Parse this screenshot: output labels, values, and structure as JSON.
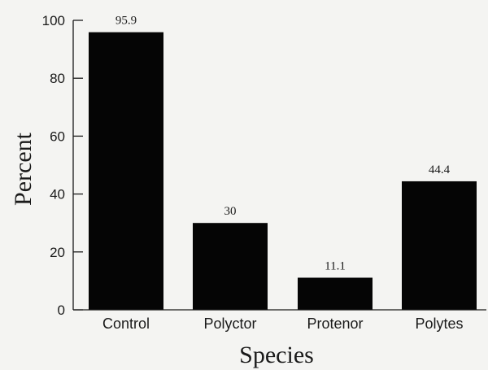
{
  "chart_data": {
    "type": "bar",
    "categories": [
      "Control",
      "Polyctor",
      "Protenor",
      "Polytes"
    ],
    "values": [
      95.9,
      30,
      11.1,
      44.4
    ],
    "data_labels": [
      "95.9",
      "30",
      "11.1",
      "44.4"
    ],
    "title": "",
    "xlabel": "Species",
    "ylabel": "Percent",
    "ylim": [
      0,
      100
    ],
    "yticks": [
      0,
      20,
      40,
      60,
      80,
      100
    ],
    "grid": false,
    "bar_color": "#050505"
  }
}
